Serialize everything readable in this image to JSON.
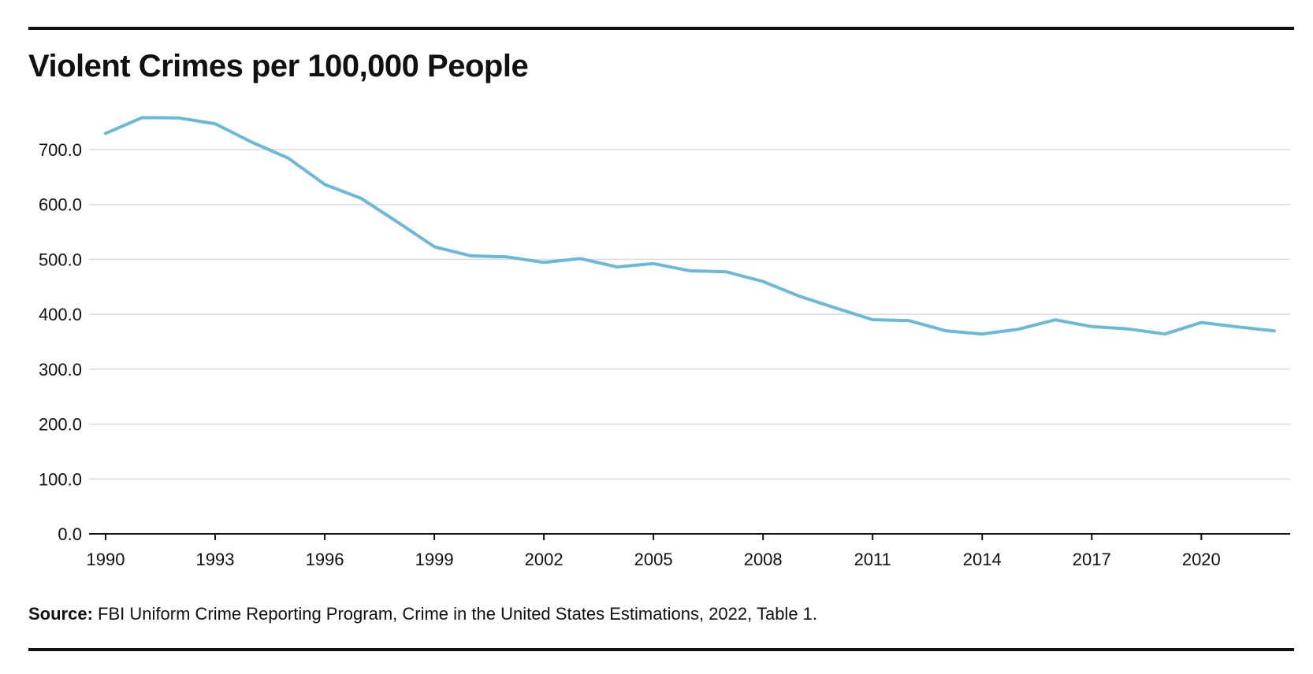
{
  "title": "Violent Crimes per 100,000 People",
  "source_label": "Source:",
  "source_text": "FBI Uniform Crime Reporting Program, Crime in the United States Estimations, 2022, Table 1.",
  "line_color": "#6bb8d8",
  "chart_data": {
    "type": "line",
    "title": "Violent Crimes per 100,000 People",
    "xlabel": "",
    "ylabel": "",
    "x": [
      1990,
      1991,
      1992,
      1993,
      1994,
      1995,
      1996,
      1997,
      1998,
      1999,
      2000,
      2001,
      2002,
      2003,
      2004,
      2005,
      2006,
      2007,
      2008,
      2009,
      2010,
      2011,
      2012,
      2013,
      2014,
      2015,
      2016,
      2017,
      2018,
      2019,
      2020,
      2021,
      2022
    ],
    "series": [
      {
        "values": [
          729.6,
          758.2,
          757.7,
          747.1,
          713.6,
          684.5,
          636.6,
          611.0,
          567.6,
          523.0,
          506.5,
          504.5,
          494.4,
          501.5,
          486.3,
          492.3,
          479.3,
          477.2,
          459.7,
          432.7,
          411.3,
          390.2,
          388.3,
          369.9,
          364.1,
          372.8,
          389.9,
          377.6,
          373.3,
          364.0,
          385.0,
          377.0,
          369.8
        ]
      }
    ],
    "xticks": [
      1990,
      1993,
      1996,
      1999,
      2002,
      2005,
      2008,
      2011,
      2014,
      2017,
      2020
    ],
    "yticks": [
      "0.0",
      "100.0",
      "200.0",
      "300.0",
      "400.0",
      "500.0",
      "600.0",
      "700.0"
    ],
    "xlim": [
      1990,
      2022
    ],
    "ylim": [
      0,
      800
    ],
    "grid": true,
    "legend": "none"
  }
}
